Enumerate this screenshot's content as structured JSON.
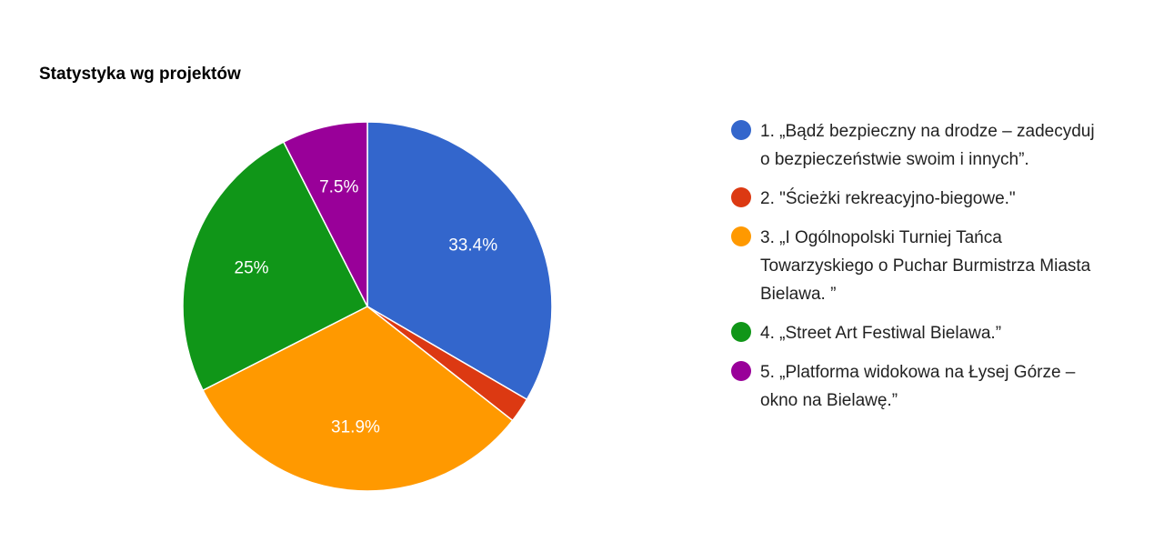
{
  "chart_data": {
    "type": "pie",
    "title": "Statystyka wg projektów",
    "series": [
      {
        "label": "1. „Bądź bezpieczny na drodze – zadecyduj o bezpieczeństwie swoim i innych”.",
        "value": 33.4,
        "display": "33.4%",
        "color": "#3366cc"
      },
      {
        "label": "2. \"Ścieżki rekreacyjno-biegowe.\"",
        "value": 2.2,
        "display": "",
        "color": "#dc3912"
      },
      {
        "label": "3. „I Ogólnopolski Turniej Tańca Towarzyskiego o Puchar Burmistrza Miasta Bielawa. ”",
        "value": 31.9,
        "display": "31.9%",
        "color": "#ff9900"
      },
      {
        "label": "4. „Street Art Festiwal Bielawa.”",
        "value": 25,
        "display": "25%",
        "color": "#109618"
      },
      {
        "label": "5. „Platforma widokowa na Łysej Górze – okno na Bielawę.”",
        "value": 7.5,
        "display": "7.5%",
        "color": "#990099"
      }
    ],
    "legend_position": "right"
  }
}
